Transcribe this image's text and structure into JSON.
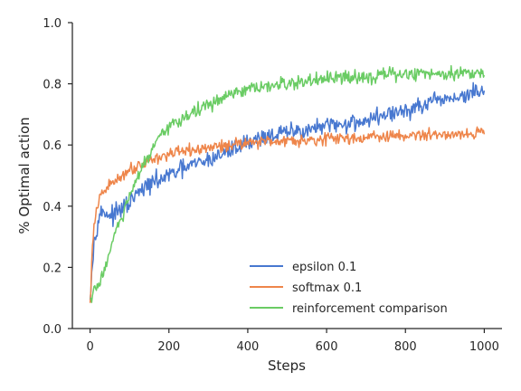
{
  "chart_data": {
    "type": "line",
    "title": "",
    "xlabel": "Steps",
    "ylabel": "% Optimal action",
    "xlim": [
      -45,
      1045
    ],
    "ylim": [
      0.0,
      1.0
    ],
    "xticks": [
      0,
      200,
      400,
      600,
      800,
      1000
    ],
    "yticks": [
      0.0,
      0.2,
      0.4,
      0.6,
      0.8,
      1.0
    ],
    "xtick_labels": [
      "0",
      "200",
      "400",
      "600",
      "800",
      "1000"
    ],
    "ytick_labels": [
      "0.0",
      "0.2",
      "0.4",
      "0.6",
      "0.8",
      "1.0"
    ],
    "grid": false,
    "legend_position": "lower-right",
    "series": [
      {
        "name": "epsilon 0.1",
        "color": "#4878d0",
        "x": [
          0,
          10,
          20,
          30,
          40,
          50,
          60,
          80,
          100,
          120,
          150,
          200,
          250,
          300,
          350,
          400,
          450,
          500,
          550,
          600,
          650,
          700,
          750,
          800,
          850,
          900,
          950,
          1000
        ],
        "y": [
          0.12,
          0.28,
          0.36,
          0.38,
          0.38,
          0.37,
          0.37,
          0.39,
          0.41,
          0.44,
          0.47,
          0.5,
          0.53,
          0.55,
          0.58,
          0.61,
          0.63,
          0.64,
          0.65,
          0.66,
          0.67,
          0.68,
          0.7,
          0.71,
          0.73,
          0.75,
          0.76,
          0.78
        ],
        "noise": 0.018
      },
      {
        "name": "softmax 0.1",
        "color": "#ee854a",
        "x": [
          0,
          5,
          10,
          20,
          30,
          50,
          70,
          100,
          150,
          200,
          250,
          300,
          350,
          400,
          500,
          600,
          700,
          800,
          900,
          1000
        ],
        "y": [
          0.07,
          0.25,
          0.33,
          0.41,
          0.44,
          0.47,
          0.49,
          0.52,
          0.55,
          0.57,
          0.58,
          0.59,
          0.6,
          0.61,
          0.615,
          0.62,
          0.625,
          0.63,
          0.635,
          0.64
        ],
        "noise": 0.012
      },
      {
        "name": "reinforcement comparison",
        "color": "#6acc64",
        "x": [
          0,
          10,
          20,
          30,
          40,
          50,
          60,
          80,
          100,
          130,
          160,
          200,
          250,
          300,
          350,
          400,
          450,
          500,
          600,
          700,
          800,
          900,
          1000
        ],
        "y": [
          0.09,
          0.12,
          0.14,
          0.17,
          0.21,
          0.25,
          0.3,
          0.36,
          0.43,
          0.52,
          0.59,
          0.66,
          0.7,
          0.73,
          0.76,
          0.78,
          0.79,
          0.8,
          0.815,
          0.825,
          0.832,
          0.835,
          0.838
        ],
        "noise": 0.014
      }
    ]
  }
}
